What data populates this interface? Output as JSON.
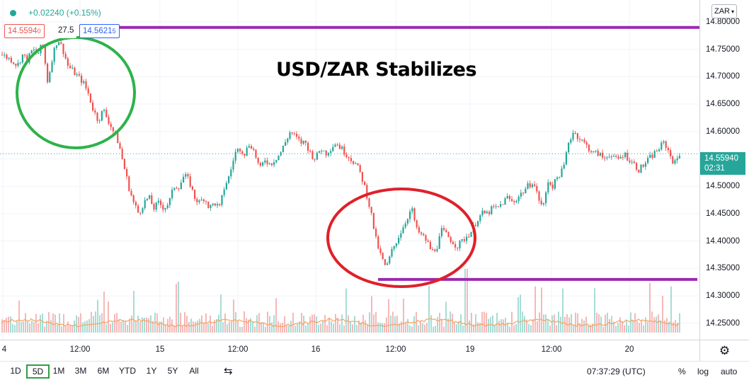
{
  "legend": {
    "change": "+0.02240 (+0.15%)",
    "bid": "14.5594",
    "bid_sup": "0",
    "spread": "27.5",
    "ask": "14.5621",
    "ask_sup": "5"
  },
  "price_axis": {
    "currency": "ZAR",
    "last_price": "14.55940",
    "countdown": "02:31"
  },
  "bottom_toolbar": {
    "ranges": [
      "1D",
      "5D",
      "1M",
      "3M",
      "6M",
      "YTD",
      "1Y",
      "5Y",
      "All"
    ],
    "active_range": "5D",
    "time": "07:37:29 (UTC)",
    "percent": "%",
    "log": "log",
    "auto": "auto"
  },
  "colors": {
    "up": "#26a69a",
    "down": "#ef5350",
    "level_line": "#9c27b0",
    "green_circle": "#2db34a",
    "red_circle": "#e0202a",
    "moving_average": "#f7a35c"
  },
  "chart_data": {
    "type": "candlestick",
    "title": "USD/ZAR Stabilizes",
    "y_ticks": [
      "14.25000",
      "14.30000",
      "14.35000",
      "14.40000",
      "14.45000",
      "14.50000",
      "14.55000",
      "14.60000",
      "14.65000",
      "14.70000",
      "14.75000",
      "14.80000"
    ],
    "ylim": [
      14.22,
      14.84
    ],
    "x_ticks": [
      "4",
      "12:00",
      "15",
      "12:00",
      "16",
      "12:00",
      "19",
      "12:00",
      "20"
    ],
    "last_price": 14.5594,
    "horizontal_levels": [
      14.79,
      14.33
    ],
    "close_series": [
      14.74,
      14.735,
      14.73,
      14.72,
      14.74,
      14.73,
      14.75,
      14.74,
      14.76,
      14.69,
      14.74,
      14.77,
      14.75,
      14.72,
      14.71,
      14.7,
      14.69,
      14.67,
      14.64,
      14.62,
      14.64,
      14.62,
      14.6,
      14.58,
      14.54,
      14.5,
      14.47,
      14.45,
      14.47,
      14.48,
      14.46,
      14.47,
      14.46,
      14.47,
      14.5,
      14.5,
      14.52,
      14.51,
      14.48,
      14.47,
      14.48,
      14.46,
      14.47,
      14.46,
      14.5,
      14.52,
      14.56,
      14.57,
      14.56,
      14.58,
      14.56,
      14.53,
      14.55,
      14.54,
      14.55,
      14.56,
      14.58,
      14.6,
      14.59,
      14.58,
      14.58,
      14.56,
      14.55,
      14.57,
      14.56,
      14.57,
      14.58,
      14.57,
      14.56,
      14.55,
      14.54,
      14.52,
      14.49,
      14.45,
      14.4,
      14.37,
      14.35,
      14.38,
      14.4,
      14.42,
      14.44,
      14.46,
      14.42,
      14.41,
      14.4,
      14.38,
      14.39,
      14.42,
      14.41,
      14.4,
      14.39,
      14.4,
      14.41,
      14.42,
      14.44,
      14.45,
      14.45,
      14.46,
      14.46,
      14.47,
      14.48,
      14.47,
      14.48,
      14.49,
      14.5,
      14.51,
      14.48,
      14.46,
      14.51,
      14.5,
      14.52,
      14.53,
      14.58,
      14.6,
      14.59,
      14.58,
      14.57,
      14.56,
      14.56,
      14.55,
      14.56,
      14.55,
      14.55,
      14.56,
      14.55,
      14.54,
      14.53,
      14.54,
      14.55,
      14.56,
      14.57,
      14.58,
      14.56,
      14.54,
      14.56
    ]
  }
}
